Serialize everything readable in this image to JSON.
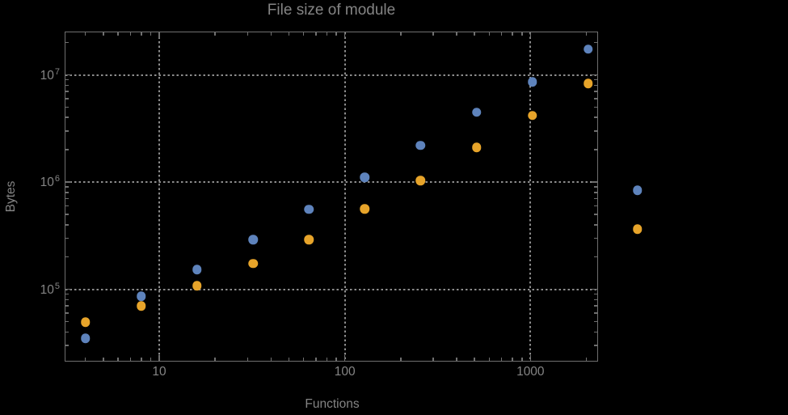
{
  "title": "File size of module",
  "axes": {
    "x_label": "Functions",
    "y_label": "Bytes"
  },
  "colors": {
    "background": "#000000",
    "frame": "#6f6f6f",
    "grid": "#8c8c8c",
    "text": "#848484",
    "series_blue": "#5e83bc",
    "series_orange": "#e7a42a"
  },
  "chart_data": {
    "type": "scatter",
    "title": "File size of module",
    "xlabel": "Functions",
    "ylabel": "Bytes",
    "x_scale": "log",
    "y_scale": "log",
    "xlim": [
      3.125,
      2291
    ],
    "ylim": [
      21500,
      24900000
    ],
    "grid": "dotted",
    "legend": "none",
    "frame_ticks": "all-edges-inward",
    "x_major_ticks": [
      10,
      100,
      1000
    ],
    "x_tick_labels": [
      "10",
      "100",
      "1000"
    ],
    "y_major_ticks": [
      100000,
      1000000,
      10000000
    ],
    "y_tick_labels": [
      {
        "base": "10",
        "exp": "5"
      },
      {
        "base": "10",
        "exp": "6"
      },
      {
        "base": "10",
        "exp": "7"
      }
    ],
    "series": [
      {
        "name": "blue",
        "color": "#5e83bc",
        "x": [
          4,
          8,
          16,
          32,
          64,
          128,
          256,
          512,
          1024,
          2048,
          3780
        ],
        "y": [
          34900,
          86000,
          153000,
          291000,
          555000,
          1110000,
          2190000,
          4460000,
          8600000,
          17300000,
          840000
        ]
      },
      {
        "name": "orange",
        "color": "#e7a42a",
        "x": [
          4,
          8,
          16,
          32,
          64,
          128,
          256,
          512,
          1024,
          2048,
          3780
        ],
        "y": [
          49400,
          70000,
          108000,
          173000,
          290000,
          563000,
          1035000,
          2110000,
          4160000,
          8330000,
          365000
        ]
      }
    ]
  }
}
